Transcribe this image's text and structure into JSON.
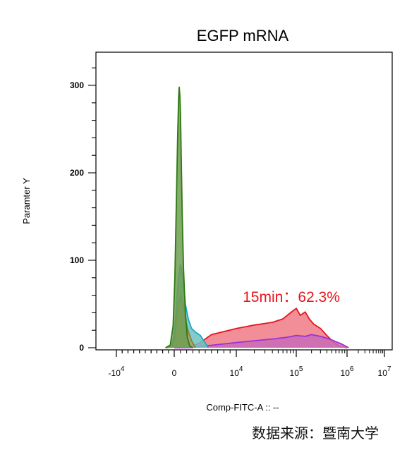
{
  "chart_data": {
    "type": "area",
    "title": "EGFP mRNA",
    "xlabel": "Comp-FITC-A :: --",
    "ylabel": "Paramter Y",
    "x_scale": "biexponential",
    "ylim": [
      0,
      330
    ],
    "y_ticks": [
      0,
      100,
      200,
      300
    ],
    "x_ticks": [
      {
        "value": -10000,
        "label": "-10",
        "exp": "4"
      },
      {
        "value": 0,
        "label": "0",
        "exp": ""
      },
      {
        "value": 10000,
        "label": "10",
        "exp": "4"
      },
      {
        "value": 100000,
        "label": "10",
        "exp": "5"
      },
      {
        "value": 1000000,
        "label": "10",
        "exp": "6"
      },
      {
        "value": 10000000,
        "label": "10",
        "exp": "7"
      }
    ],
    "annotation": "15min：62.3%",
    "grid": false,
    "legend": "none",
    "series": [
      {
        "color": "#e8141b",
        "fill": "#f07a86",
        "x": [
          0,
          800,
          2500,
          4000,
          6000,
          10000,
          20000,
          40000,
          60000,
          80000,
          100000,
          120000,
          150000,
          180000,
          220000,
          300000,
          400000,
          550000,
          700000,
          1000000
        ],
        "y": [
          0,
          0,
          1,
          5,
          15,
          22,
          26,
          29,
          33,
          40,
          45,
          37,
          41,
          33,
          27,
          22,
          14,
          6,
          2,
          0
        ]
      },
      {
        "color": "#9b30d9",
        "fill": "#c96bb7",
        "x": [
          0,
          2500,
          5000,
          10000,
          20000,
          40000,
          70000,
          100000,
          150000,
          200000,
          300000,
          450000,
          600000,
          800000,
          1100000
        ],
        "y": [
          0,
          0,
          2,
          6,
          8,
          10,
          12,
          14,
          13,
          15,
          13,
          10,
          7,
          4,
          0
        ]
      },
      {
        "color": "#1aa9c9",
        "fill": "#6ec2c0",
        "x": [
          -1500,
          -400,
          100,
          400,
          700,
          1000,
          1400,
          1800,
          2300,
          2800,
          3400,
          4200,
          5500
        ],
        "y": [
          0,
          2,
          20,
          55,
          80,
          95,
          80,
          50,
          32,
          22,
          18,
          14,
          0
        ]
      },
      {
        "color": "#8a7d3a",
        "fill": "#a6a26b",
        "x": [
          -1500,
          -400,
          100,
          400,
          700,
          1000,
          1400,
          1800,
          2300,
          2800,
          3400
        ],
        "y": [
          0,
          1,
          12,
          35,
          50,
          60,
          50,
          32,
          18,
          8,
          0
        ]
      },
      {
        "color": "#2f7a12",
        "fill": "#6f9e52",
        "x": [
          -1500,
          -700,
          -200,
          100,
          350,
          550,
          700,
          800,
          900,
          1000,
          1150,
          1300,
          1500,
          1800,
          2100,
          2500,
          3000
        ],
        "y": [
          0,
          3,
          25,
          80,
          170,
          240,
          285,
          298,
          290,
          270,
          210,
          150,
          90,
          40,
          12,
          2,
          0
        ]
      }
    ]
  },
  "source_note": "数据来源：暨南大学"
}
